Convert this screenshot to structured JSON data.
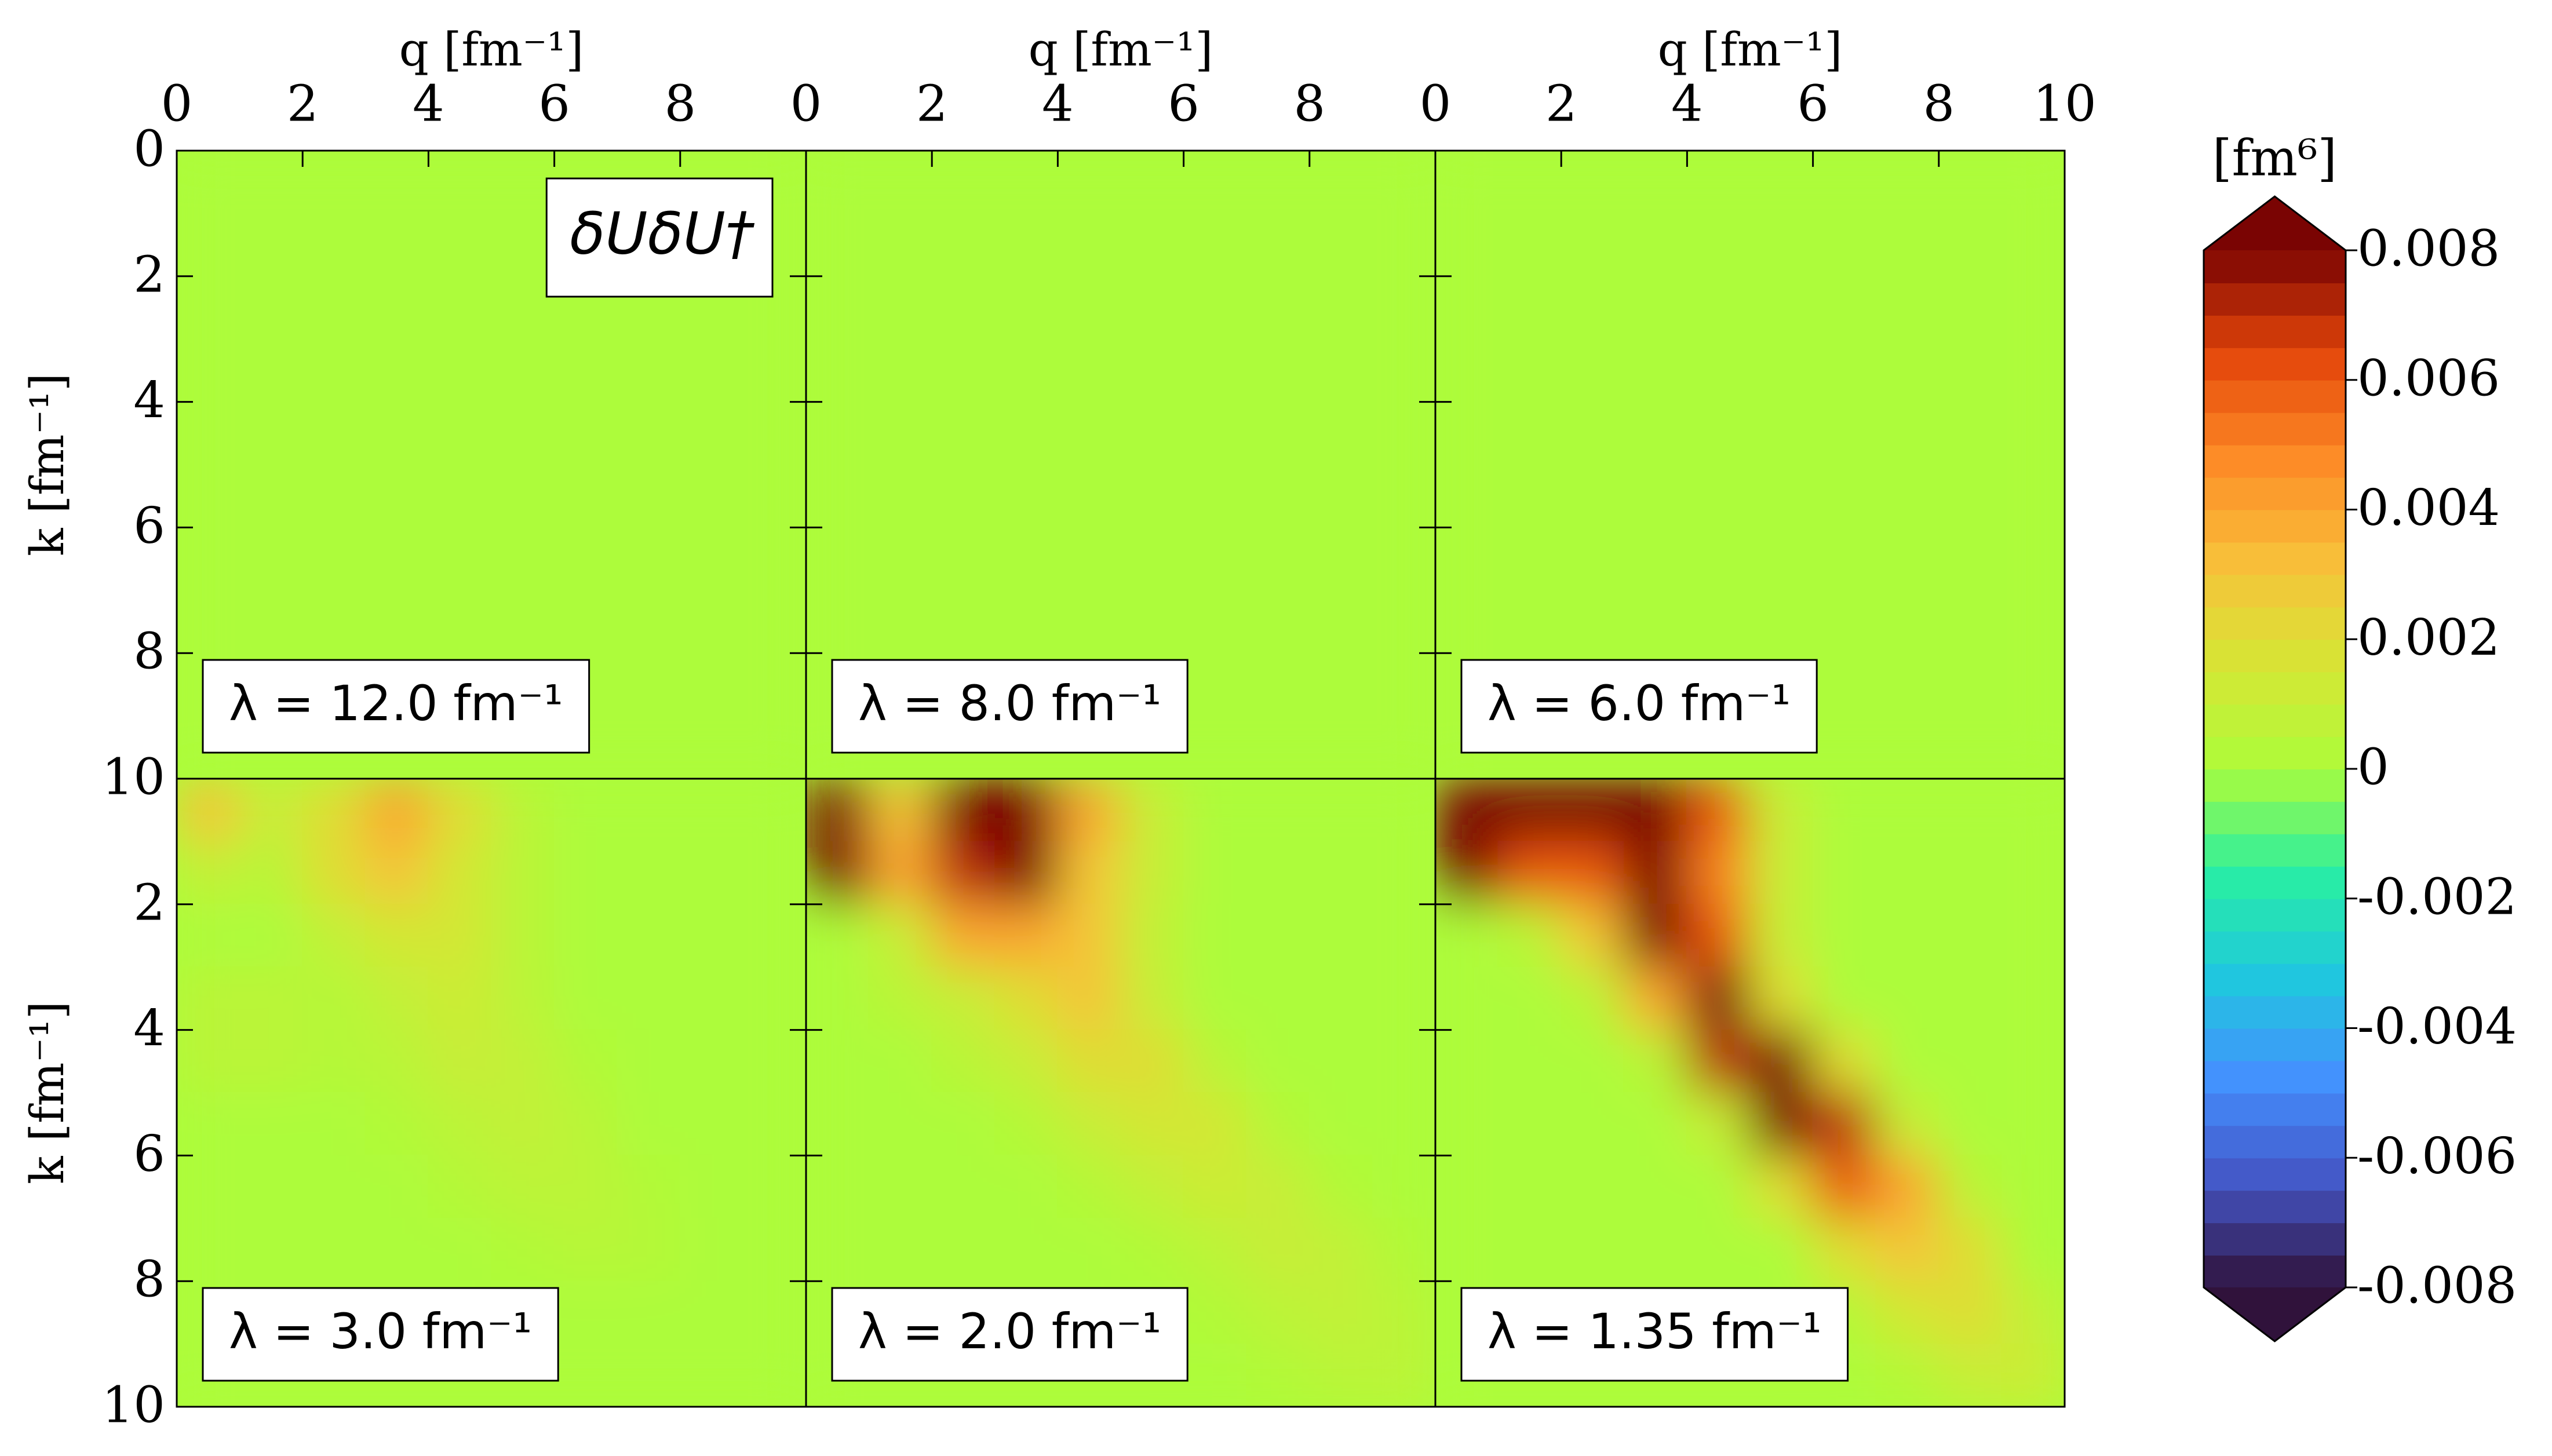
{
  "chart_data": {
    "type": "contourf",
    "panels": [
      {
        "label": "λ = 12.0 fm⁻¹",
        "annotation": "δUδU†",
        "xlabel": "q [fm⁻¹]",
        "ylabel": "k [fm⁻¹]",
        "xlim": [
          0,
          10
        ],
        "ylim": [
          0,
          10
        ],
        "xticks": [
          0,
          2,
          4,
          6,
          8
        ],
        "yticks": [
          0,
          2,
          4,
          6,
          8,
          10
        ],
        "ytick_labels": true,
        "z": [
          [
            0,
            0,
            0,
            0,
            0,
            0,
            0,
            0,
            0,
            0
          ],
          [
            0,
            0,
            0,
            0,
            0,
            0,
            0,
            0,
            0,
            0
          ],
          [
            0,
            0,
            0,
            0,
            0,
            0,
            0,
            0,
            0,
            0
          ],
          [
            0,
            0,
            0,
            0,
            0,
            0,
            0,
            0,
            0,
            0
          ],
          [
            0,
            0,
            0,
            0,
            0,
            0,
            0,
            0,
            0,
            0
          ],
          [
            0,
            0,
            0,
            0,
            0,
            0,
            0,
            0,
            0,
            0
          ],
          [
            0,
            0,
            0,
            0,
            0,
            0,
            0,
            0,
            0,
            0
          ],
          [
            0,
            0,
            0,
            0,
            0,
            0,
            0,
            0,
            0,
            0
          ],
          [
            0,
            0,
            0,
            0,
            0,
            0,
            0,
            0,
            0,
            0
          ],
          [
            0,
            0,
            0,
            0,
            0,
            0,
            0,
            0,
            0,
            0
          ]
        ]
      },
      {
        "label": "λ = 8.0 fm⁻¹",
        "xlabel": "q [fm⁻¹]",
        "xlim": [
          0,
          10
        ],
        "ylim": [
          0,
          10
        ],
        "xticks": [
          0,
          2,
          4,
          6,
          8
        ],
        "yticks": [
          2,
          4,
          6,
          8
        ],
        "ytick_labels": false,
        "z": [
          [
            0,
            0,
            0,
            0,
            0,
            0,
            0,
            0,
            0,
            0
          ],
          [
            0,
            0,
            0,
            0,
            0,
            0,
            0,
            0,
            0,
            0
          ],
          [
            0,
            0,
            0,
            0,
            0,
            0,
            0,
            0,
            0,
            0
          ],
          [
            0,
            0,
            0,
            0,
            0,
            0,
            0,
            0,
            0,
            0
          ],
          [
            0,
            0,
            0,
            0,
            0,
            0,
            0,
            0,
            0,
            0
          ],
          [
            0,
            0,
            0,
            0,
            0,
            0,
            0,
            0,
            0,
            0
          ],
          [
            0,
            0,
            0,
            0,
            0,
            0,
            0,
            0,
            0,
            0
          ],
          [
            0,
            0,
            0,
            0,
            0,
            0,
            0,
            0,
            0,
            0
          ],
          [
            0,
            0,
            0,
            0,
            0,
            0,
            0,
            0,
            0,
            0
          ],
          [
            0,
            0,
            0,
            0,
            0,
            0,
            0,
            0,
            0,
            0
          ]
        ]
      },
      {
        "label": "λ = 6.0 fm⁻¹",
        "xlabel": "q [fm⁻¹]",
        "xlim": [
          0,
          10
        ],
        "ylim": [
          0,
          10
        ],
        "xticks": [
          0,
          2,
          4,
          6,
          8,
          10
        ],
        "yticks": [
          2,
          4,
          6,
          8
        ],
        "ytick_labels": false,
        "z": [
          [
            0,
            0,
            0,
            0,
            0,
            0,
            0,
            0,
            0,
            0
          ],
          [
            0,
            0,
            0,
            0,
            0,
            0,
            0,
            0,
            0,
            0
          ],
          [
            0,
            0,
            0,
            0,
            0,
            0,
            0,
            0,
            0,
            0
          ],
          [
            0,
            0,
            0,
            0,
            0,
            0,
            0,
            0,
            0,
            0
          ],
          [
            0,
            0,
            0,
            0,
            0,
            0,
            0,
            0,
            0,
            0
          ],
          [
            0,
            0,
            0,
            0,
            0,
            0,
            0,
            0,
            0,
            0
          ],
          [
            0,
            0,
            0,
            0,
            0,
            0,
            0,
            0,
            0,
            0
          ],
          [
            0,
            0,
            0,
            0,
            0,
            0,
            0,
            0,
            0,
            0
          ],
          [
            0,
            0,
            0,
            0,
            0,
            0,
            0,
            0,
            0,
            0
          ],
          [
            0,
            0,
            0,
            0,
            0,
            0,
            0,
            0,
            0,
            0
          ]
        ]
      },
      {
        "label": "λ = 3.0 fm⁻¹",
        "ylabel": "k [fm⁻¹]",
        "xlim": [
          0,
          10
        ],
        "ylim": [
          0,
          10
        ],
        "yticks": [
          2,
          4,
          6,
          8,
          10
        ],
        "ytick_labels": true,
        "z": [
          [
            0.003,
            0.001,
            0.002,
            0.004,
            0.002,
            0.0005,
            0,
            0,
            0,
            0
          ],
          [
            0.0008,
            0.0005,
            0.002,
            0.003,
            0.0015,
            0.0005,
            0,
            0,
            0,
            0
          ],
          [
            0,
            0,
            0.0008,
            0.0015,
            0.0015,
            0.0005,
            0,
            0,
            0,
            0
          ],
          [
            0.0005,
            0.0005,
            0.0003,
            0.0008,
            0.0012,
            0.0006,
            0,
            0,
            0,
            0
          ],
          [
            0.0005,
            0.0005,
            0.0003,
            0.0005,
            0.001,
            0.0008,
            0.0002,
            0,
            0,
            0
          ],
          [
            0,
            0,
            0,
            0.0002,
            0.0006,
            0.0008,
            0.0005,
            0,
            0,
            0
          ],
          [
            0,
            0,
            0,
            0,
            0.0003,
            0.0006,
            0.0006,
            0.0002,
            0,
            0
          ],
          [
            0,
            0,
            0,
            0,
            0,
            0.0002,
            0.0004,
            0.0003,
            0,
            0
          ],
          [
            0,
            0,
            0,
            0,
            0,
            0,
            0,
            0,
            0,
            0
          ],
          [
            0,
            0,
            0,
            0,
            0,
            0,
            0,
            0,
            0,
            0
          ]
        ]
      },
      {
        "label": "λ = 2.0 fm⁻¹",
        "xlim": [
          0,
          10
        ],
        "ylim": [
          0,
          10
        ],
        "yticks": [
          2,
          4,
          6,
          8
        ],
        "ytick_labels": false,
        "z": [
          [
            0.009,
            0.003,
            0.009,
            0.009,
            0.004,
            0.001,
            0,
            0,
            0,
            0
          ],
          [
            0.009,
            0.004,
            0.007,
            0.008,
            0.003,
            0.001,
            0,
            0,
            0,
            0
          ],
          [
            0,
            0.001,
            0.004,
            0.004,
            0.003,
            0.0008,
            0,
            0,
            0,
            0
          ],
          [
            0,
            0.0005,
            0.001,
            0.002,
            0.003,
            0.001,
            0,
            0,
            0,
            0
          ],
          [
            0,
            0,
            0.0005,
            0.001,
            0.002,
            0.002,
            0.0005,
            0,
            0,
            0
          ],
          [
            0,
            0,
            0,
            0.0003,
            0.001,
            0.0015,
            0.0015,
            0.0003,
            0,
            0
          ],
          [
            0,
            0,
            0,
            0,
            0.0003,
            0.0008,
            0.0012,
            0.001,
            0.0002,
            0
          ],
          [
            0,
            0,
            0,
            0,
            0,
            0.0002,
            0.0006,
            0.001,
            0.0008,
            0.0002
          ],
          [
            0,
            0,
            0,
            0,
            0,
            0,
            0.0002,
            0.0006,
            0.0008,
            0.0005
          ],
          [
            0,
            0,
            0,
            0,
            0,
            0,
            0,
            0.0002,
            0.0005,
            0.0006
          ]
        ]
      },
      {
        "label": "λ = 1.35 fm⁻¹",
        "xlim": [
          0,
          10
        ],
        "ylim": [
          0,
          10
        ],
        "yticks": [
          2,
          4,
          6,
          8
        ],
        "ytick_labels": false,
        "z": [
          [
            0.009,
            0.009,
            0.009,
            0.009,
            0.006,
            0.001,
            0,
            0,
            0,
            0
          ],
          [
            0.009,
            0.006,
            0.006,
            0.009,
            0.005,
            0.001,
            0,
            0,
            0,
            0
          ],
          [
            0,
            0.0005,
            0.003,
            0.009,
            0.006,
            0.001,
            0,
            0,
            0,
            0
          ],
          [
            0,
            0,
            0.0005,
            0.004,
            0.009,
            0.002,
            0,
            0,
            0,
            0
          ],
          [
            0,
            0,
            0,
            0.0005,
            0.007,
            0.009,
            0.002,
            0,
            0,
            0
          ],
          [
            0,
            0,
            0,
            0,
            0.001,
            0.008,
            0.007,
            0.001,
            0,
            0
          ],
          [
            0,
            0,
            0,
            0,
            0,
            0.002,
            0.006,
            0.004,
            0.0005,
            0
          ],
          [
            0,
            0,
            0,
            0,
            0,
            0,
            0.002,
            0.003,
            0.002,
            0
          ],
          [
            0,
            0,
            0,
            0,
            0,
            0,
            0.0003,
            0.0015,
            0.002,
            0.0008
          ],
          [
            0,
            0,
            0,
            0,
            0,
            0,
            0,
            0.0003,
            0.001,
            0.0012
          ]
        ]
      }
    ],
    "colorbar": {
      "label": "[fm⁶]",
      "clim": [
        -0.008,
        0.008
      ],
      "ticks": [
        0.008,
        0.006,
        0.004,
        0.002,
        0,
        -0.002,
        -0.004,
        -0.006,
        -0.008
      ],
      "extend": "both",
      "colormap": [
        "#30123b",
        "#4454c4",
        "#4490fe",
        "#1fc8de",
        "#29efa2",
        "#adfc3a",
        "#d6e635",
        "#f8c03a",
        "#fd8a26",
        "#e4460a",
        "#7a0403"
      ]
    }
  }
}
